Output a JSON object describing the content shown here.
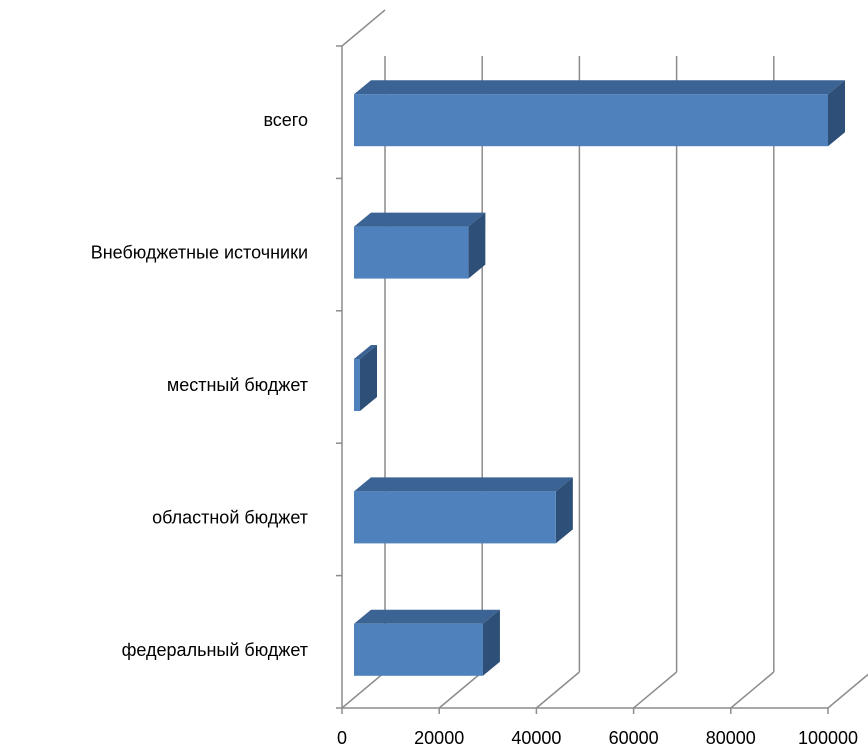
{
  "colors": {
    "bar_front": "#4f81bd",
    "bar_top": "#3b6494",
    "bar_side": "#2e4f77",
    "grid": "#8c8c8c"
  },
  "chart_data": {
    "type": "bar",
    "orientation": "horizontal",
    "three_d": true,
    "categories": [
      "всего",
      "Внебюджетные источники",
      "местный бюджет",
      "областной бюджет",
      "федеральный бюджет"
    ],
    "values": [
      100000,
      26000,
      2000,
      44000,
      29000
    ],
    "xlim": [
      0,
      100000
    ],
    "x_ticks": [
      "0",
      "20000",
      "40000",
      "60000",
      "80000",
      "100000"
    ],
    "grid": true,
    "legend": false
  }
}
